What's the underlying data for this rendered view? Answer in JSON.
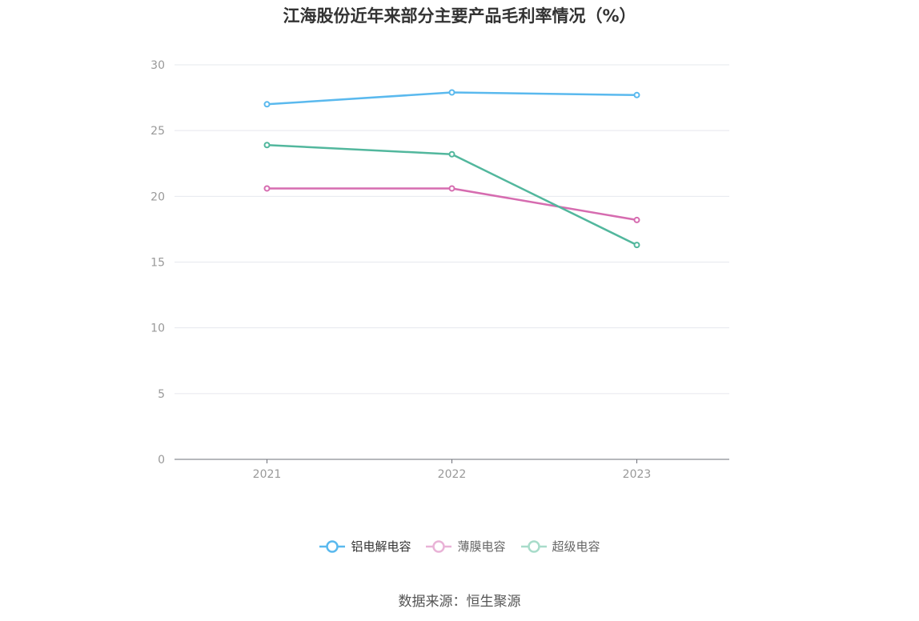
{
  "title": "江海股份近年来部分主要产品毛利率情况（%）",
  "source": "数据来源：恒生聚源",
  "chart_data": {
    "type": "line",
    "title": "江海股份近年来部分主要产品毛利率情况（%）",
    "categories": [
      "2021",
      "2022",
      "2023"
    ],
    "ylim": [
      0,
      30
    ],
    "yticks": [
      0,
      5,
      10,
      15,
      20,
      25,
      30
    ],
    "grid": true,
    "legend_position": "bottom",
    "series": [
      {
        "name": "铝电解电容",
        "color": "#5ab9ee",
        "values": [
          27.0,
          27.9,
          27.7
        ]
      },
      {
        "name": "薄膜电容",
        "color": "#d66cb0",
        "values": [
          20.6,
          20.6,
          18.2
        ]
      },
      {
        "name": "超级电容",
        "color": "#52b79d",
        "values": [
          23.9,
          23.2,
          16.3
        ]
      }
    ]
  }
}
